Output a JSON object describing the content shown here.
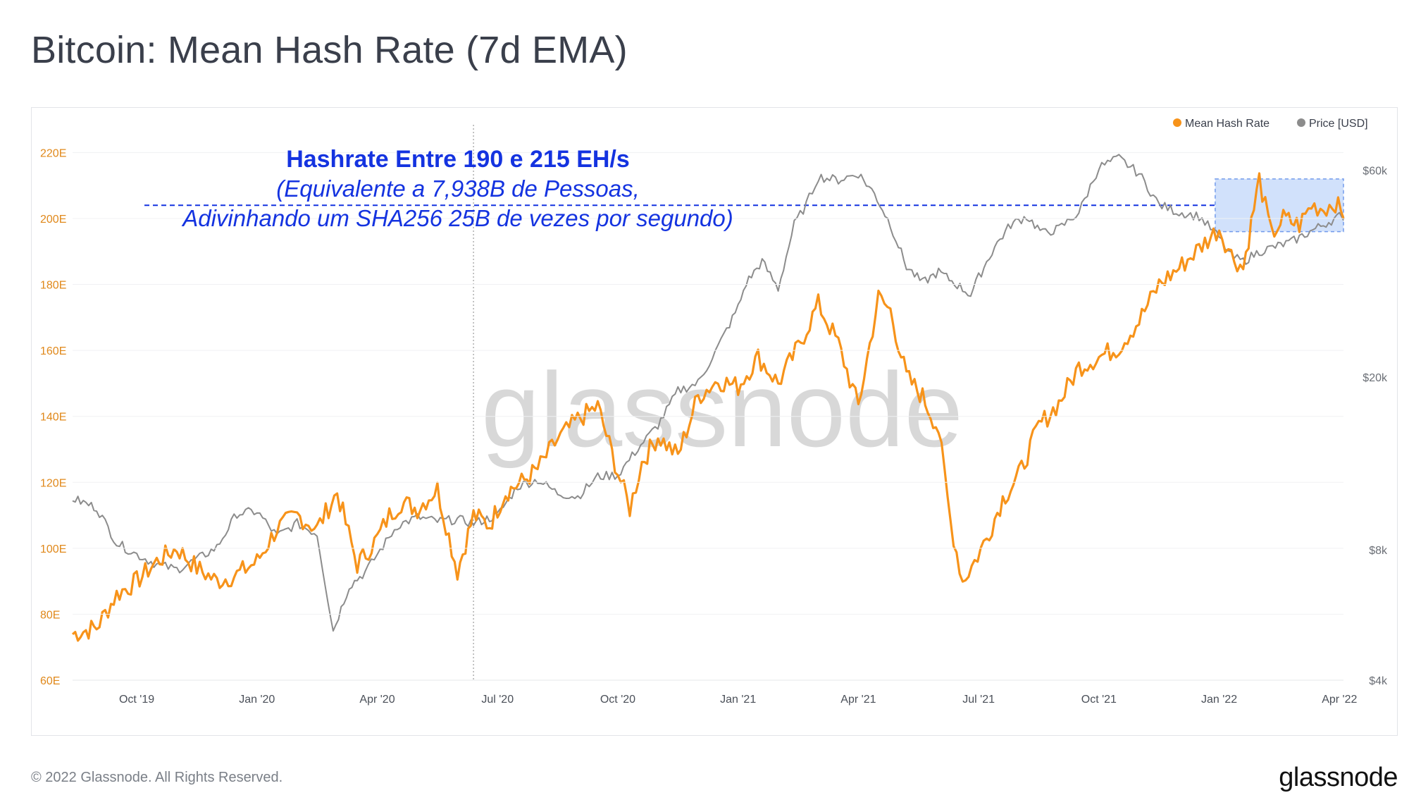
{
  "title": "Bitcoin: Mean Hash Rate (7d EMA)",
  "footer": {
    "copyright": "© 2022 Glassnode. All Rights Reserved.",
    "logo": "glassnode"
  },
  "watermark": "glassnode",
  "colors": {
    "hash": "#f7931a",
    "price": "#8c8c8c",
    "annotation": "#1433e0",
    "highlight_fill": "#c9dcfb",
    "highlight_stroke": "#5b8ae8",
    "axis_left": "#e0881a",
    "axis_right": "#6b6f76"
  },
  "annotation": {
    "title": "Hashrate Entre 190 e 215 EH/s",
    "line1": "(Equivalente a 7,938B de Pessoas,",
    "line2": "Adivinhando um SHA256 25B de vezes por segundo)"
  },
  "chart_data": {
    "type": "line",
    "title": "Bitcoin: Mean Hash Rate (7d EMA)",
    "x_ticks": [
      "Oct '19",
      "Jan '20",
      "Apr '20",
      "Jul '20",
      "Oct '20",
      "Jan '21",
      "Apr '21",
      "Jul '21",
      "Oct '21",
      "Jan '22",
      "Apr '22"
    ],
    "x_tick_months": [
      3,
      6,
      9,
      12,
      15,
      18,
      21,
      24,
      27,
      30,
      33
    ],
    "x_range_months": [
      1.4,
      33.1
    ],
    "y_left": {
      "ticks": [
        "60E",
        "80E",
        "100E",
        "120E",
        "140E",
        "160E",
        "180E",
        "200E",
        "220E"
      ],
      "tick_values": [
        60,
        80,
        100,
        120,
        140,
        160,
        180,
        200,
        220
      ],
      "range": [
        60,
        225
      ]
    },
    "y_right": {
      "ticks": [
        "$4k",
        "$8k",
        "$20k",
        "$60k"
      ],
      "tick_values": [
        4000,
        8000,
        20000,
        60000
      ],
      "scale": "log",
      "range": [
        4000,
        72000
      ]
    },
    "legend": [
      {
        "label": "Mean Hash Rate",
        "color": "#f7931a"
      },
      {
        "label": "Price [USD]",
        "color": "#8c8c8c"
      }
    ],
    "legend_position": "top-right",
    "annotation_level_eh": 204,
    "highlight_box": {
      "x_months": [
        29.9,
        33.1
      ],
      "y_eh": [
        196,
        212
      ]
    },
    "vertical_marker_month": 11.4,
    "series": [
      {
        "name": "Mean Hash Rate",
        "axis": "left",
        "x_months": [
          1.4,
          2,
          2.5,
          3,
          3.5,
          4,
          4.5,
          5,
          5.5,
          6,
          6.5,
          7,
          7.5,
          8,
          8.5,
          9,
          9.3,
          9.6,
          10,
          10.5,
          11,
          11.4,
          11.8,
          12.2,
          12.6,
          13,
          13.5,
          14,
          14.5,
          15,
          15.3,
          15.6,
          16,
          16.5,
          17,
          17.5,
          18,
          18.5,
          19,
          19.5,
          20,
          20.5,
          21,
          21.5,
          21.8,
          22.2,
          22.6,
          23,
          23.3,
          23.6,
          23.9,
          24.2,
          24.6,
          25,
          25.5,
          26,
          26.5,
          27,
          27.5,
          28,
          28.5,
          29,
          29.5,
          30,
          30.3,
          30.6,
          31,
          31.3,
          31.6,
          32,
          32.3,
          32.6,
          32.9,
          33.1
        ],
        "values": [
          74,
          76,
          86,
          90,
          96,
          100,
          94,
          90,
          92,
          96,
          106,
          110,
          106,
          117,
          95,
          103,
          110,
          114,
          112,
          118,
          93,
          110,
          107,
          117,
          120,
          124,
          133,
          139,
          143,
          123,
          112,
          126,
          134,
          128,
          146,
          151,
          149,
          158,
          150,
          161,
          174,
          162,
          143,
          176,
          172,
          152,
          146,
          136,
          108,
          90,
          96,
          103,
          115,
          122,
          137,
          144,
          155,
          158,
          161,
          169,
          180,
          185,
          191,
          197,
          189,
          185,
          212,
          195,
          200,
          198,
          204,
          203,
          205,
          200
        ]
      },
      {
        "name": "Price [USD]",
        "axis": "right",
        "x_months": [
          1.4,
          2,
          2.5,
          3,
          3.5,
          4,
          4.5,
          5,
          5.5,
          6,
          6.5,
          7,
          7.5,
          7.9,
          8.3,
          8.7,
          9,
          9.5,
          10,
          10.5,
          11,
          11.4,
          12,
          12.5,
          13,
          13.5,
          14,
          14.5,
          15,
          15.5,
          16,
          16.5,
          17,
          17.5,
          18,
          18.2,
          18.6,
          19,
          19.4,
          19.7,
          20,
          20.5,
          21,
          21.4,
          21.8,
          22.2,
          22.6,
          23,
          23.4,
          23.8,
          24,
          24.4,
          24.8,
          25.2,
          25.6,
          26,
          26.5,
          27,
          27.5,
          28,
          28.5,
          29,
          29.5,
          30,
          30.3,
          30.6,
          31,
          31.4,
          31.8,
          32.2,
          32.6,
          33,
          33.1
        ],
        "values": [
          10500,
          10000,
          8300,
          7800,
          7400,
          7200,
          7600,
          8100,
          9700,
          9800,
          8600,
          9200,
          8700,
          5200,
          6600,
          7100,
          7800,
          9100,
          9500,
          9300,
          9400,
          9200,
          9600,
          11200,
          11600,
          10800,
          10600,
          11800,
          11900,
          13700,
          15500,
          18600,
          19400,
          23500,
          29000,
          33000,
          37000,
          32000,
          45000,
          50000,
          58000,
          57000,
          59000,
          53000,
          45000,
          36000,
          33000,
          35000,
          33000,
          31000,
          34000,
          40000,
          45000,
          47000,
          43000,
          44000,
          48000,
          61000,
          64000,
          59000,
          50000,
          48000,
          47000,
          42000,
          38000,
          37000,
          39000,
          40000,
          41000,
          43000,
          45000,
          47000,
          46000
        ]
      }
    ]
  }
}
